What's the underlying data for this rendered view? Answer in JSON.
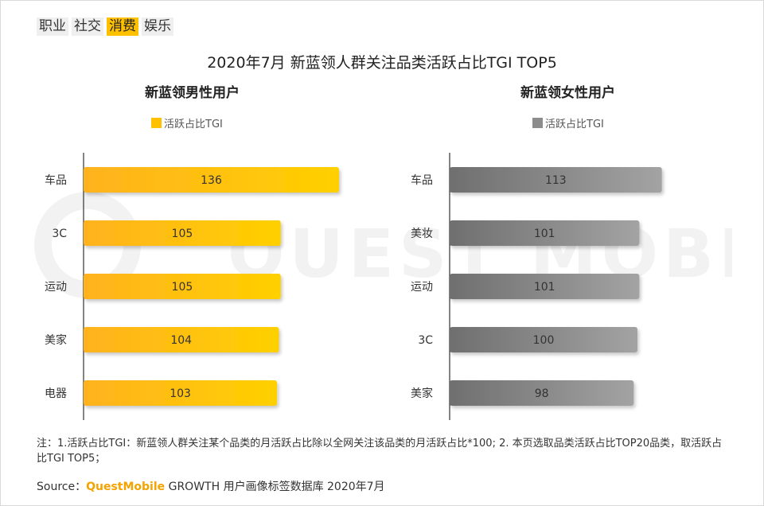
{
  "tabs": [
    {
      "label": "职业",
      "active": false
    },
    {
      "label": "社交",
      "active": false
    },
    {
      "label": "消费",
      "active": true
    },
    {
      "label": "娱乐",
      "active": false
    }
  ],
  "title": "2020年7月 新蓝领人群关注品类活跃占比TGI TOP5",
  "watermark": "QUEST MOBILE",
  "chart_data": [
    {
      "type": "bar",
      "orientation": "horizontal",
      "title": "新蓝领男性用户",
      "legend": "活跃占比TGI",
      "color": "#ffc000",
      "categories": [
        "车品",
        "3C",
        "运动",
        "美家",
        "电器"
      ],
      "values": [
        136,
        105,
        105,
        104,
        103
      ]
    },
    {
      "type": "bar",
      "orientation": "horizontal",
      "title": "新蓝领女性用户",
      "legend": "活跃占比TGI",
      "color": "#8c8c8c",
      "categories": [
        "车品",
        "美妆",
        "运动",
        "3C",
        "美家"
      ],
      "values": [
        113,
        101,
        101,
        100,
        98
      ]
    }
  ],
  "note": "注：1.活跃占比TGI：新蓝领人群关注某个品类的月活跃占比除以全网关注该品类的月活跃占比*100; 2. 本页选取品类活跃占比TOP20品类，取活跃占比TGI TOP5；",
  "source": {
    "prefix": "Source：",
    "brand": "QuestMobile",
    "rest": " GROWTH 用户画像标签数据库 2020年7月"
  }
}
